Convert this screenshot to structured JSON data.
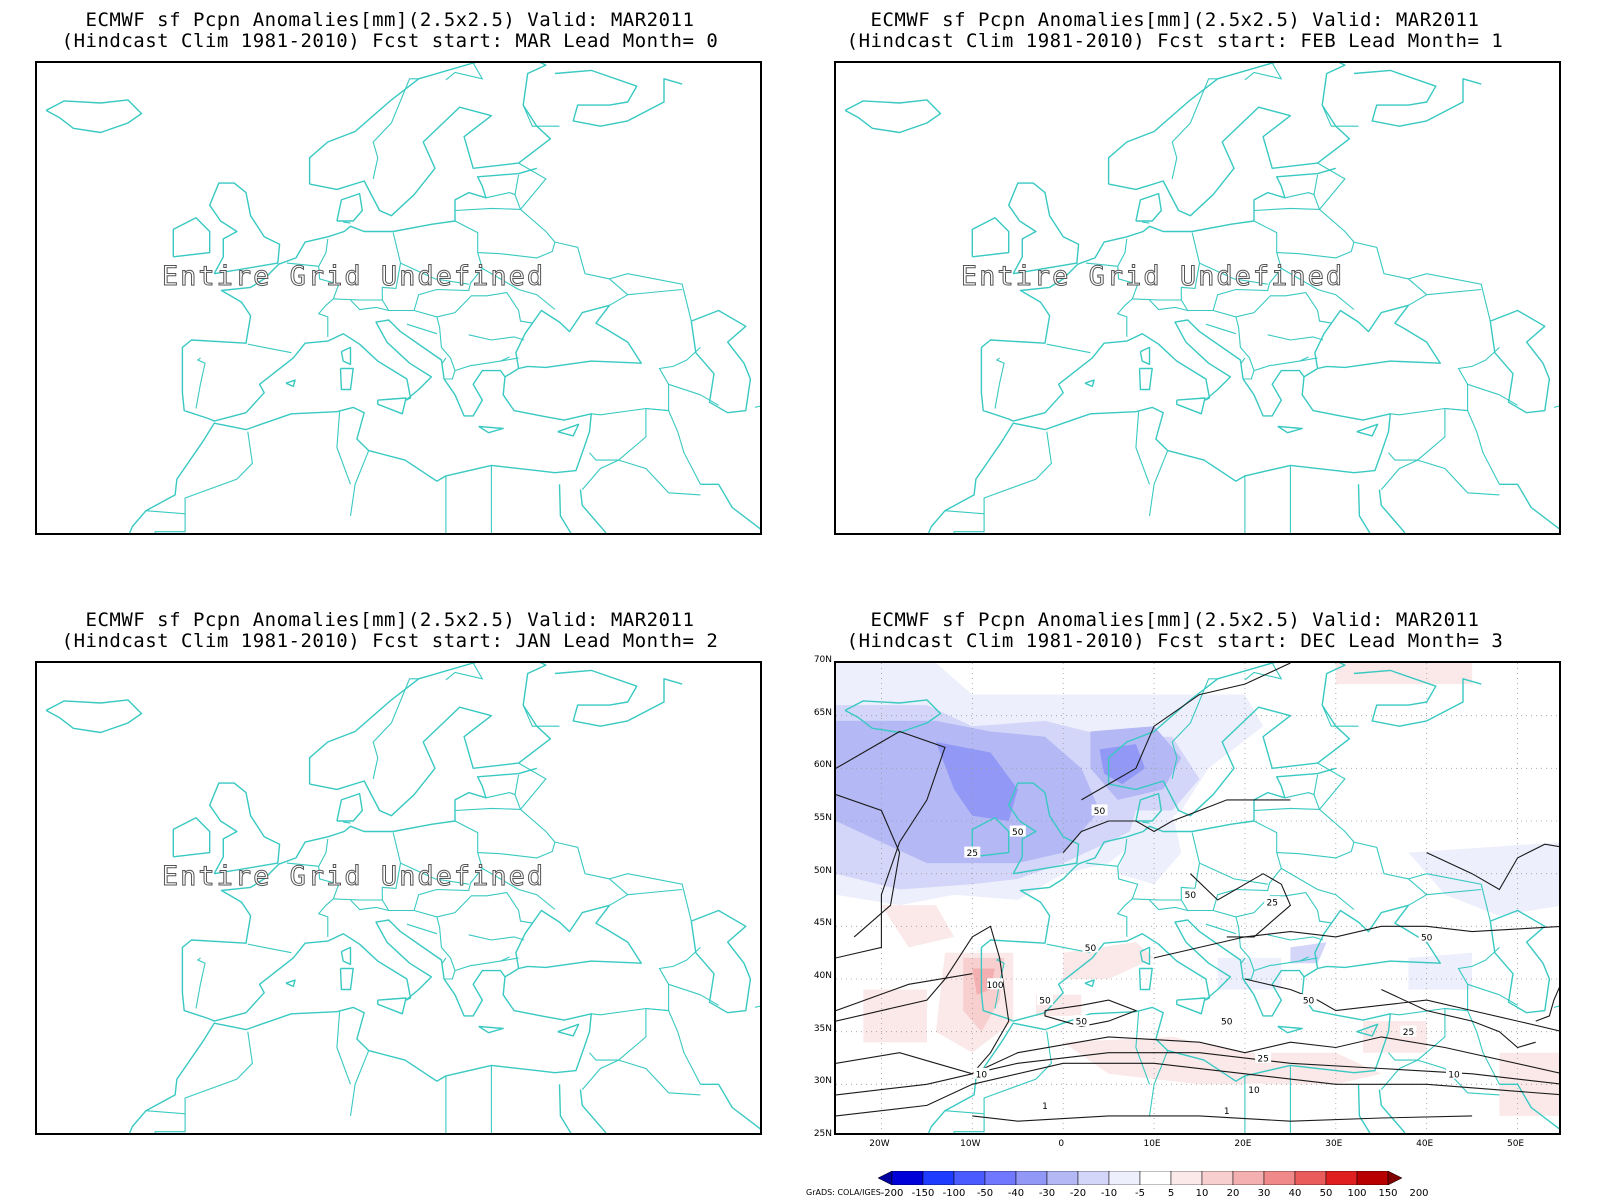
{
  "panels": [
    {
      "title1": "ECMWF sf Pcpn Anomalies[mm](2.5x2.5) Valid: MAR2011",
      "title2": "(Hindcast Clim 1981-2010) Fcst start: MAR  Lead Month= 0",
      "status": "Entire Grid Undefined"
    },
    {
      "title1": "ECMWF sf Pcpn Anomalies[mm](2.5x2.5) Valid: MAR2011",
      "title2": "(Hindcast Clim 1981-2010) Fcst start: FEB  Lead Month= 1",
      "status": "Entire Grid Undefined"
    },
    {
      "title1": "ECMWF sf Pcpn Anomalies[mm](2.5x2.5) Valid: MAR2011",
      "title2": "(Hindcast Clim 1981-2010) Fcst start: JAN  Lead Month= 2",
      "status": "Entire Grid Undefined"
    },
    {
      "title1": "ECMWF sf Pcpn Anomalies[mm](2.5x2.5) Valid: MAR2011",
      "title2": "(Hindcast Clim 1981-2010) Fcst start: DEC  Lead Month= 3",
      "status": ""
    }
  ],
  "map": {
    "lat_labels": [
      "70N",
      "65N",
      "60N",
      "55N",
      "50N",
      "45N",
      "40N",
      "35N",
      "30N",
      "25N"
    ],
    "lon_labels": [
      "20W",
      "10W",
      "0",
      "10E",
      "20E",
      "30E",
      "40E",
      "50E"
    ],
    "coast_color": "#39c9c2",
    "contour_labels": [
      "50",
      "50",
      "25",
      "50",
      "100",
      "50",
      "50",
      "50",
      "50",
      "50",
      "25",
      "25",
      "10",
      "10",
      "1",
      "1",
      "50",
      "10",
      "25"
    ]
  },
  "colorbar": {
    "labels": [
      "-200",
      "-150",
      "-100",
      "-50",
      "-40",
      "-30",
      "-20",
      "-10",
      "-5",
      "5",
      "10",
      "20",
      "30",
      "40",
      "50",
      "100",
      "150",
      "200"
    ],
    "colors": [
      "#0000a0",
      "#0000d8",
      "#1e3cff",
      "#4a5cff",
      "#7078ff",
      "#9198f5",
      "#b4b8f5",
      "#d3d6f8",
      "#eeeffc",
      "#ffffff",
      "#fbe8e8",
      "#f8cfcf",
      "#f4b0b0",
      "#f08a8a",
      "#ea5c5c",
      "#e02020",
      "#b80000",
      "#800000"
    ],
    "credit": "GrADS: COLA/IGES"
  }
}
